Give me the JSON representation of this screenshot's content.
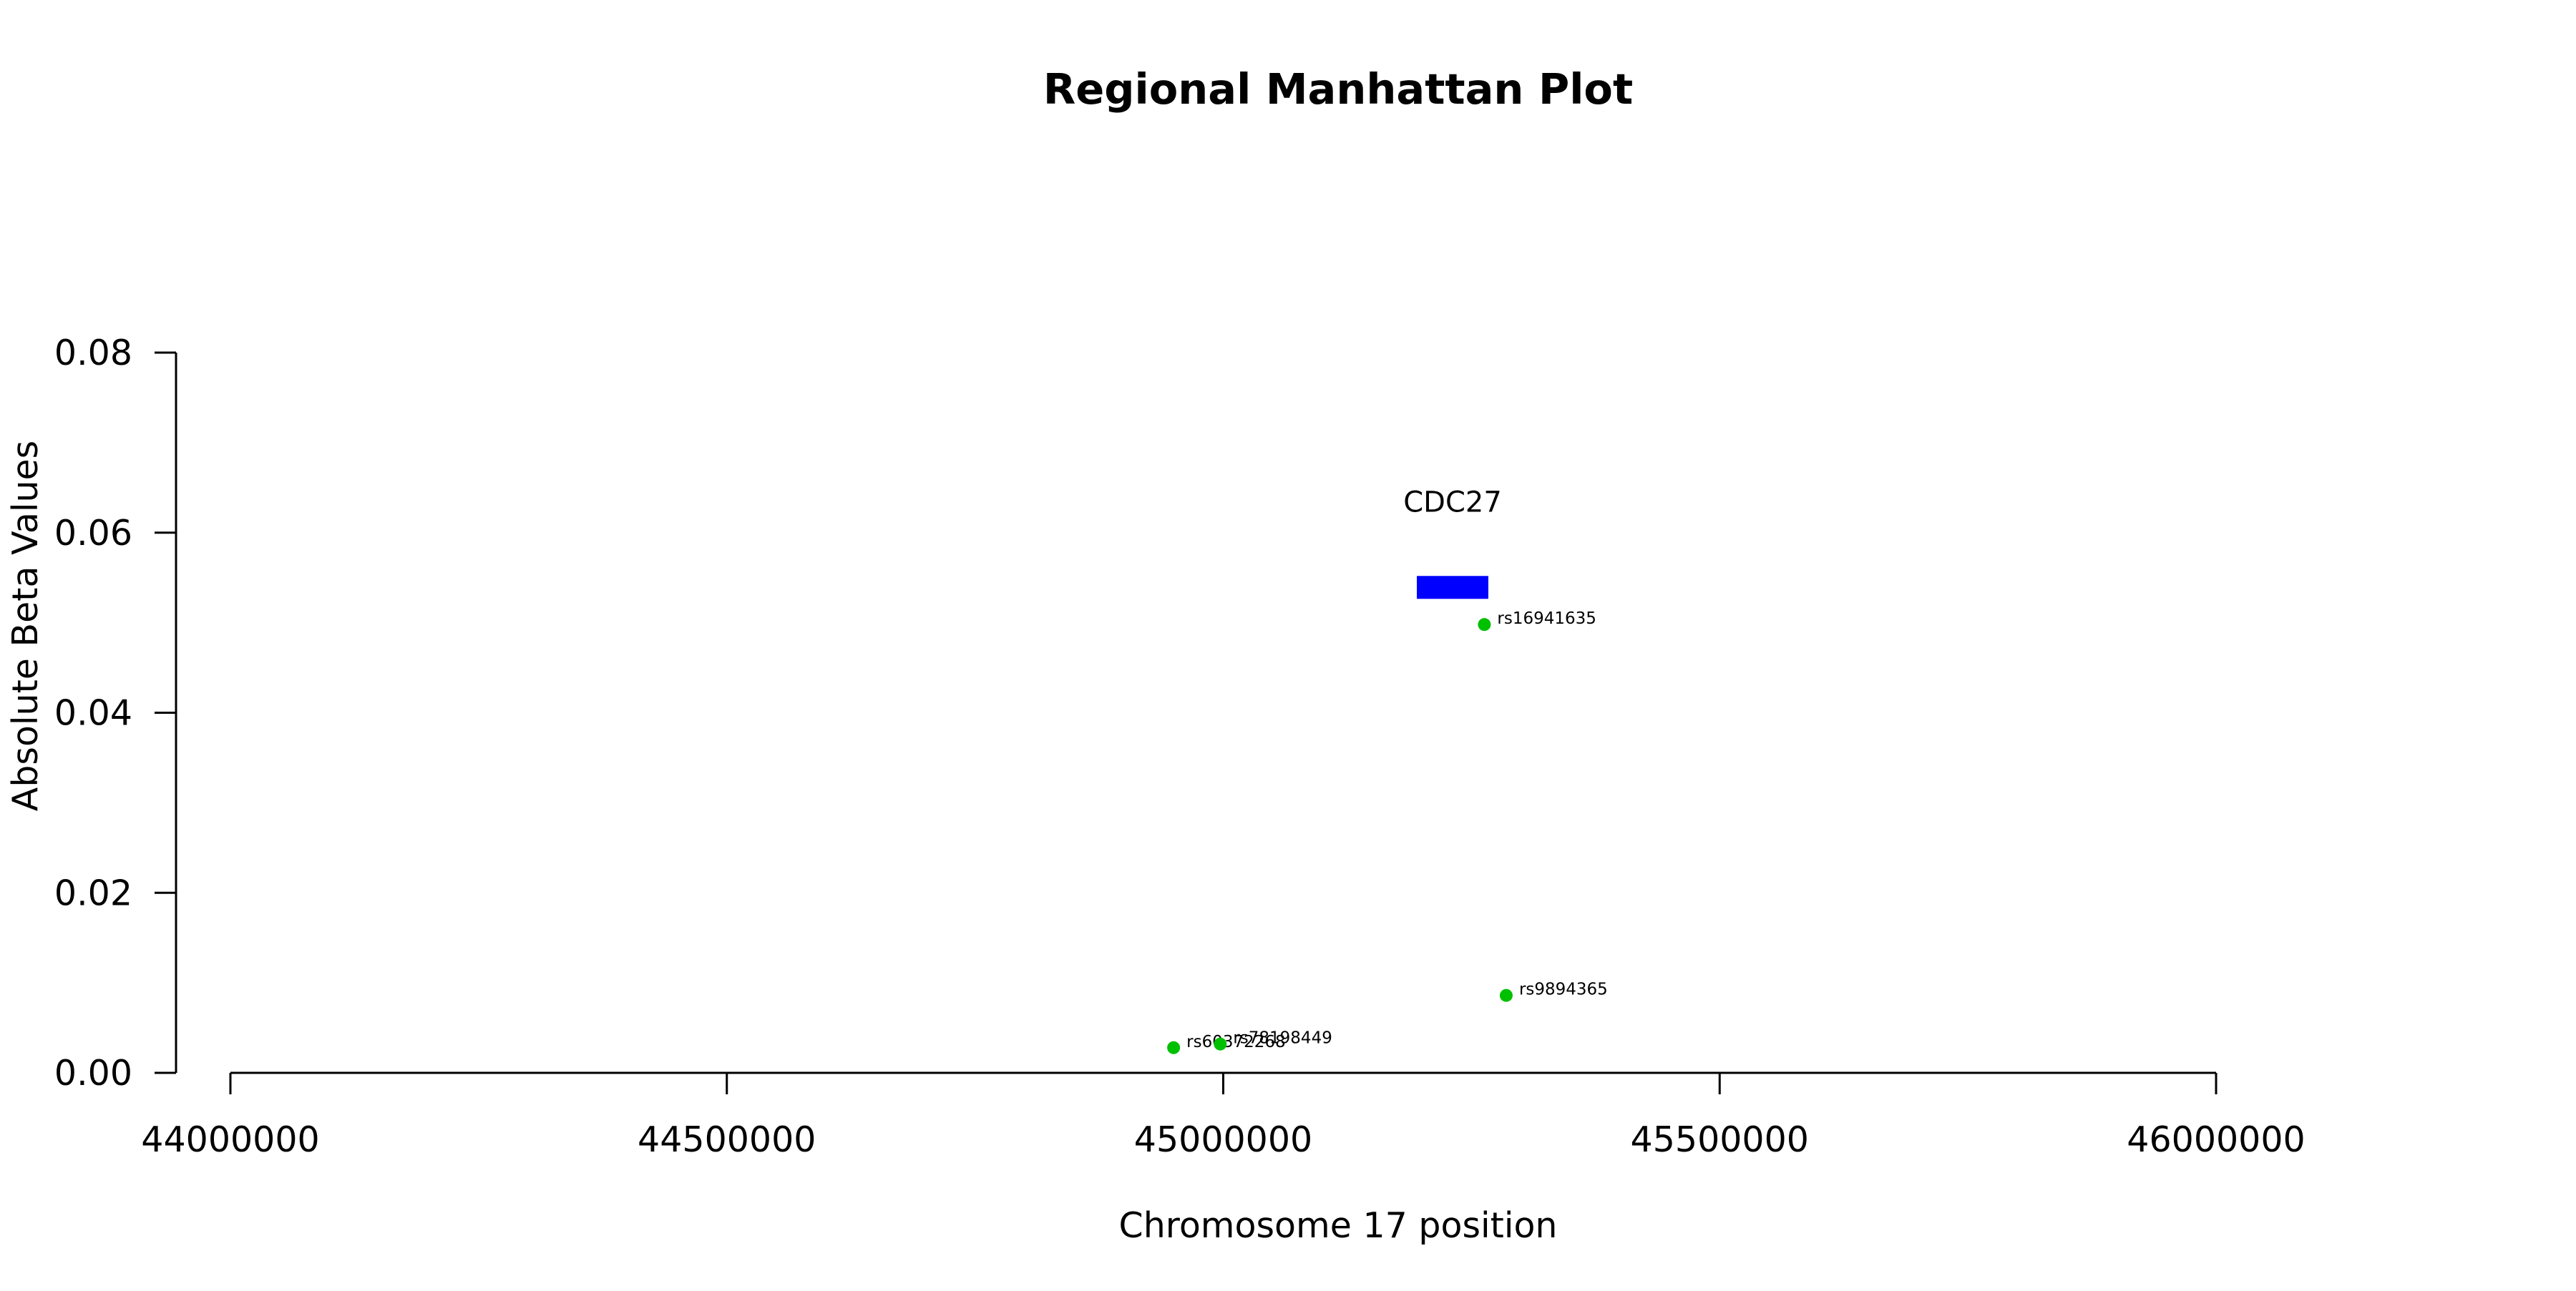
{
  "chart_data": {
    "type": "scatter",
    "title": "Regional Manhattan Plot",
    "xlabel": "Chromosome 17 position",
    "ylabel": "Absolute Beta Values",
    "xlim": [
      44000000,
      46000000
    ],
    "ylim": [
      0,
      0.08
    ],
    "x_ticks": [
      "44000000",
      "44500000",
      "45000000",
      "45500000",
      "46000000"
    ],
    "y_ticks": [
      "0.00",
      "0.02",
      "0.04",
      "0.06",
      "0.08"
    ],
    "grid": false,
    "point_color": "#00c000",
    "gene_color": "#0000ff",
    "genes": [
      {
        "name": "CDC27",
        "start": 45195000,
        "end": 45267000,
        "y": 0.054
      }
    ],
    "series": [
      {
        "points": [
          {
            "label": "rs16941635",
            "x": 45263000,
            "y": 0.0498
          },
          {
            "label": "rs9894365",
            "x": 45285000,
            "y": 0.0086
          },
          {
            "label": "rs60372268",
            "x": 44950000,
            "y": 0.0028
          },
          {
            "label": "rs78198449",
            "x": 44997000,
            "y": 0.0032
          }
        ]
      }
    ]
  }
}
